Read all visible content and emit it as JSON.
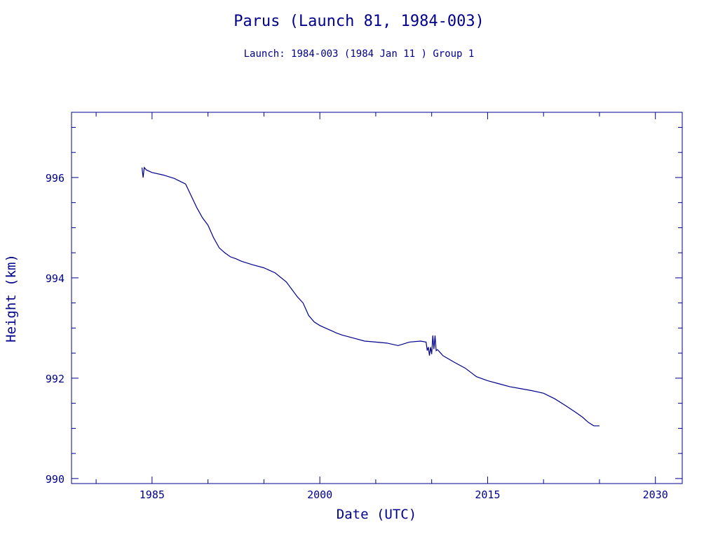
{
  "chart_data": {
    "type": "line",
    "title": "Parus (Launch 81, 1984-003)",
    "subtitle": "Launch: 1984-003  (1984 Jan 11 )  Group 1",
    "xlabel": "Date (UTC)",
    "ylabel": "Height (km)",
    "xlim": [
      1977.8,
      2032.4
    ],
    "ylim": [
      989.9,
      997.3
    ],
    "x_ticks": [
      1985,
      2000,
      2015,
      2030
    ],
    "x_tick_labels": [
      "1985",
      "2000",
      "2015",
      "2030"
    ],
    "y_ticks": [
      990,
      992,
      994,
      996
    ],
    "y_tick_labels": [
      "990",
      "992",
      "994",
      "996"
    ],
    "grid": false,
    "color": "#00008b",
    "series": [
      {
        "x": [
          1984.1,
          1984.2,
          1984.3,
          1984.5,
          1985.0,
          1986.0,
          1987.0,
          1988.0,
          1989.0,
          1989.5,
          1990.0,
          1990.5,
          1991.0,
          1991.5,
          1992.0,
          1992.5,
          1993.0,
          1994.0,
          1995.0,
          1996.0,
          1997.0,
          1998.0,
          1998.5,
          1999.0,
          1999.5,
          2000.0,
          2000.5,
          2001.0,
          2001.5,
          2002.0,
          2002.5,
          2003.0,
          2004.0,
          2005.0,
          2006.0,
          2007.0,
          2008.0,
          2009.0,
          2009.5,
          2009.6,
          2009.7,
          2009.8,
          2009.9,
          2010.0,
          2010.1,
          2010.2,
          2010.3,
          2010.4,
          2010.5,
          2010.6,
          2011.0,
          2012.0,
          2013.0,
          2014.0,
          2015.0,
          2016.0,
          2017.0,
          2018.0,
          2019.0,
          2020.0,
          2021.0,
          2022.0,
          2023.0,
          2023.5,
          2024.0,
          2024.5,
          2025.0
        ],
        "y": [
          996.2,
          996.0,
          996.2,
          996.15,
          996.1,
          996.05,
          995.98,
          995.87,
          995.4,
          995.2,
          995.05,
          994.8,
          994.6,
          994.5,
          994.42,
          994.38,
          994.33,
          994.26,
          994.2,
          994.1,
          993.92,
          993.62,
          993.5,
          993.25,
          993.12,
          993.05,
          993.0,
          992.95,
          992.9,
          992.86,
          992.83,
          992.8,
          992.74,
          992.72,
          992.7,
          992.65,
          992.72,
          992.74,
          992.72,
          992.55,
          992.62,
          992.45,
          992.62,
          992.48,
          992.85,
          992.58,
          992.85,
          992.55,
          992.57,
          992.55,
          992.45,
          992.32,
          992.2,
          992.03,
          991.95,
          991.89,
          991.83,
          991.79,
          991.75,
          991.7,
          991.59,
          991.45,
          991.3,
          991.22,
          991.12,
          991.05,
          991.05
        ]
      }
    ]
  }
}
